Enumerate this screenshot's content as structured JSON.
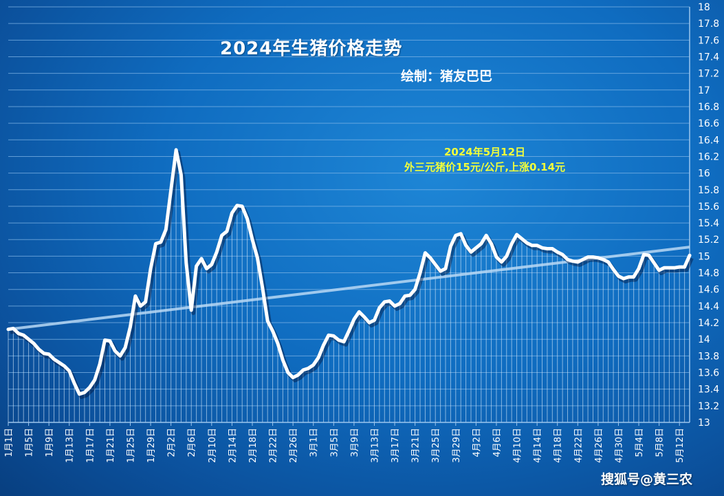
{
  "chart_data": {
    "type": "area",
    "title": "2024年生猪价格走势",
    "subtitle": "绘制：猪友巴巴",
    "annotation": [
      "2024年5月12日",
      "外三元猪价15元/公斤,上涨0.14元"
    ],
    "ylim": [
      13,
      18
    ],
    "y_ticks": [
      "13",
      "13.2",
      "13.4",
      "13.6",
      "13.8",
      "14",
      "14.2",
      "14.4",
      "14.6",
      "14.8",
      "15",
      "15.2",
      "15.4",
      "15.6",
      "15.8",
      "16",
      "16.2",
      "16.4",
      "16.6",
      "16.8",
      "17",
      "17.2",
      "17.4",
      "17.6",
      "17.8",
      "18"
    ],
    "x_tick_labels": [
      "1月1日",
      "1月5日",
      "1月9日",
      "1月13日",
      "1月17日",
      "1月21日",
      "1月25日",
      "1月29日",
      "2月2日",
      "2月6日",
      "2月10日",
      "2月14日",
      "2月18日",
      "2月22日",
      "2月26日",
      "3月1日",
      "3月5日",
      "3月9日",
      "3月13日",
      "3月17日",
      "3月21日",
      "3月25日",
      "3月29日",
      "4月2日",
      "4月6日",
      "4月10日",
      "4月14日",
      "4月18日",
      "4月22日",
      "4月26日",
      "4月30日",
      "5月4日",
      "5月8日",
      "5月12日"
    ],
    "x_start": "2024-01-01",
    "x_end": "2024-05-12",
    "series": [
      {
        "values": [
          14.12,
          14.13,
          14.07,
          14.05,
          14.0,
          13.95,
          13.88,
          13.83,
          13.82,
          13.76,
          13.72,
          13.68,
          13.62,
          13.47,
          13.34,
          13.36,
          13.42,
          13.51,
          13.7,
          13.99,
          13.98,
          13.86,
          13.8,
          13.9,
          14.15,
          14.52,
          14.4,
          14.45,
          14.85,
          15.15,
          15.17,
          15.32,
          15.8,
          16.28,
          15.98,
          14.92,
          14.35,
          14.88,
          14.97,
          14.85,
          14.9,
          15.05,
          15.25,
          15.3,
          15.52,
          15.61,
          15.6,
          15.45,
          15.2,
          14.98,
          14.62,
          14.22,
          14.1,
          13.95,
          13.75,
          13.6,
          13.54,
          13.57,
          13.63,
          13.65,
          13.69,
          13.78,
          13.93,
          14.05,
          14.04,
          13.99,
          13.97,
          14.1,
          14.24,
          14.33,
          14.27,
          14.2,
          14.23,
          14.38,
          14.45,
          14.46,
          14.4,
          14.43,
          14.52,
          14.53,
          14.6,
          14.8,
          15.04,
          14.98,
          14.9,
          14.82,
          14.85,
          15.12,
          15.25,
          15.27,
          15.13,
          15.05,
          15.1,
          15.15,
          15.25,
          15.15,
          14.99,
          14.93,
          15.0,
          15.15,
          15.26,
          15.21,
          15.16,
          15.13,
          15.13,
          15.1,
          15.09,
          15.09,
          15.05,
          15.02,
          14.96,
          14.94,
          14.93,
          14.96,
          14.99,
          14.99,
          14.98,
          14.96,
          14.93,
          14.84,
          14.76,
          14.73,
          14.75,
          14.75,
          14.85,
          15.02,
          15.01,
          14.92,
          14.83,
          14.86,
          14.86,
          14.86,
          14.87,
          14.87,
          15.01
        ]
      }
    ],
    "trendline": {
      "start": 14.12,
      "end": 15.11
    },
    "grid": true,
    "colors": {
      "line": "#ffffff",
      "trend": "#b8d8f4",
      "grid": "#7fb4e6",
      "annotation": "#f3ff3a"
    }
  },
  "watermark": "搜狐号@黄三农"
}
